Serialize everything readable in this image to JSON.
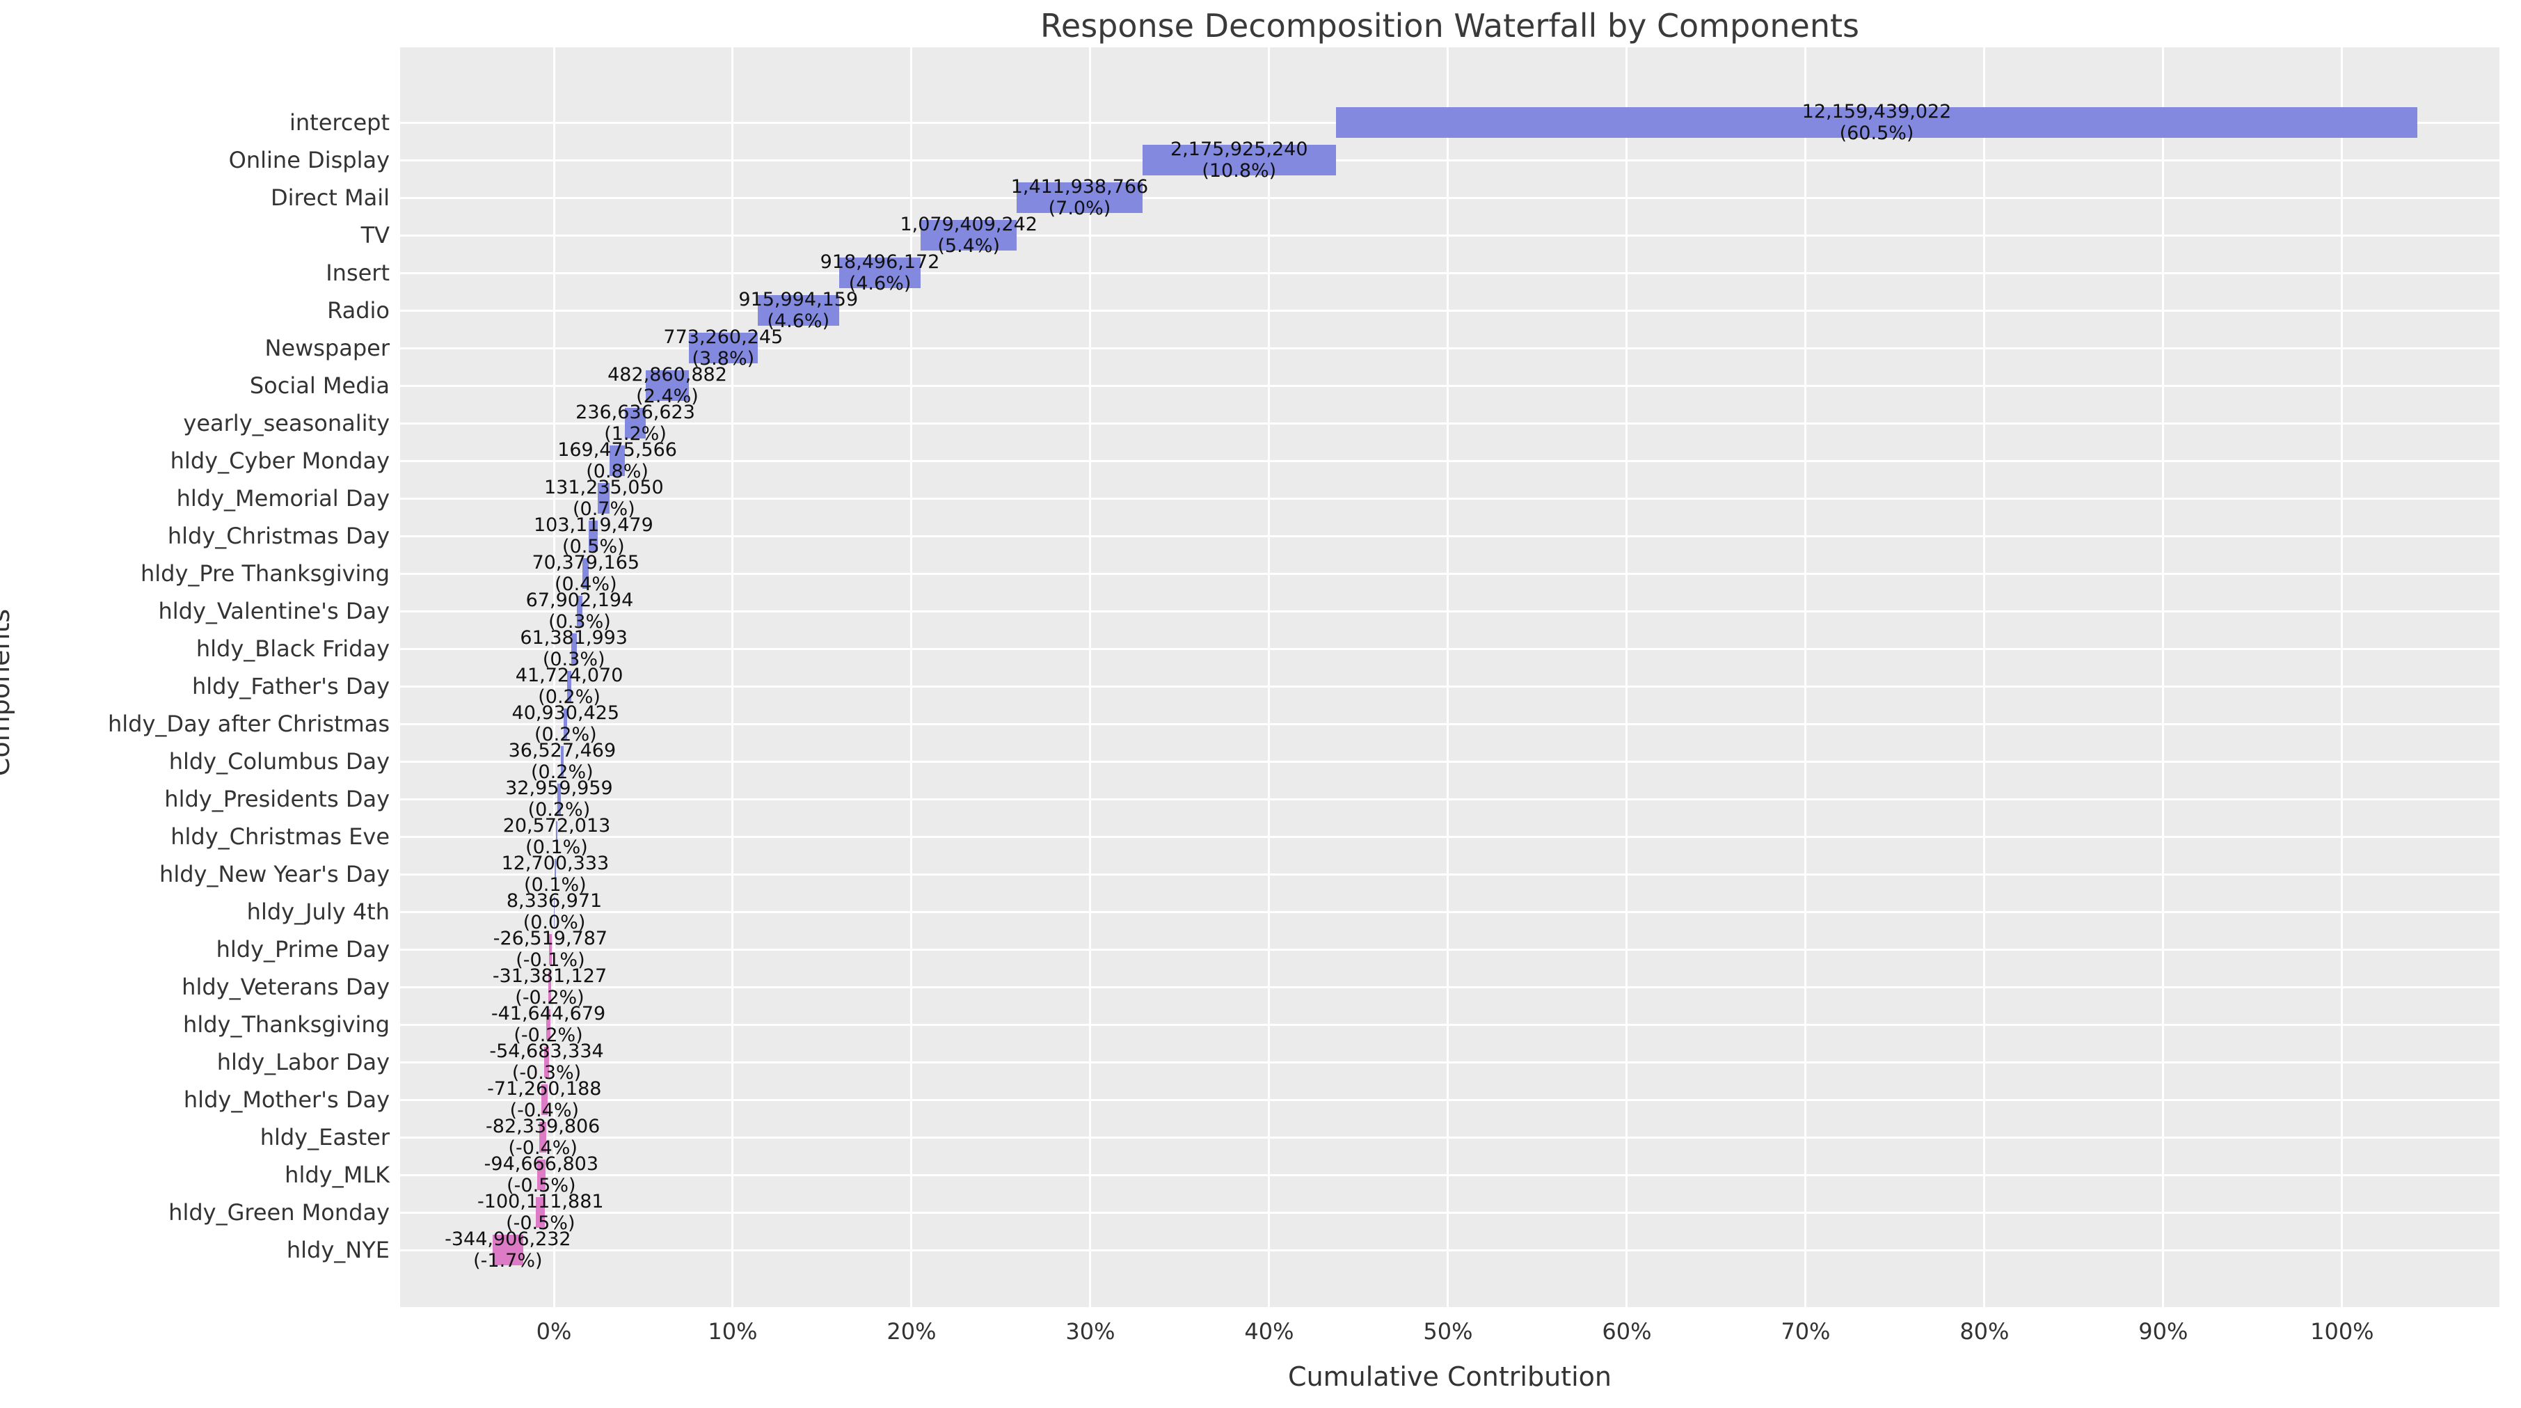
{
  "chart_data": {
    "type": "bar",
    "subtype": "horizontal-waterfall",
    "title": "Response Decomposition Waterfall by Components",
    "xlabel": "Cumulative Contribution",
    "ylabel": "Components",
    "legend": false,
    "grid": true,
    "xlim_pct": [
      -8.6,
      108.8
    ],
    "x_ticks": [
      {
        "value": 0,
        "label": "0%"
      },
      {
        "value": 10,
        "label": "10%"
      },
      {
        "value": 20,
        "label": "20%"
      },
      {
        "value": 30,
        "label": "30%"
      },
      {
        "value": 40,
        "label": "40%"
      },
      {
        "value": 50,
        "label": "50%"
      },
      {
        "value": 60,
        "label": "60%"
      },
      {
        "value": 70,
        "label": "70%"
      },
      {
        "value": 80,
        "label": "80%"
      },
      {
        "value": 90,
        "label": "90%"
      },
      {
        "value": 100,
        "label": "100%"
      }
    ],
    "colors": {
      "positive_bar": "#8289DF",
      "negative_bar": "#DD7BC7",
      "plot_background": "#EBEBEB",
      "grid_line": "#FFFFFF",
      "title_text": "#3A3A3A",
      "axis_text": "#333333",
      "bar_label_text": "#111111"
    },
    "rows": [
      {
        "label": "intercept",
        "value": 12159439022,
        "value_text": "12,159,439,022",
        "pct_text": "(60.5%)"
      },
      {
        "label": "Online Display",
        "value": 2175925240,
        "value_text": "2,175,925,240",
        "pct_text": "(10.8%)"
      },
      {
        "label": "Direct Mail",
        "value": 1411938766,
        "value_text": "1,411,938,766",
        "pct_text": "(7.0%)"
      },
      {
        "label": "TV",
        "value": 1079409242,
        "value_text": "1,079,409,242",
        "pct_text": "(5.4%)"
      },
      {
        "label": "Insert",
        "value": 918496172,
        "value_text": "918,496,172",
        "pct_text": "(4.6%)"
      },
      {
        "label": "Radio",
        "value": 915994159,
        "value_text": "915,994,159",
        "pct_text": "(4.6%)"
      },
      {
        "label": "Newspaper",
        "value": 773260245,
        "value_text": "773,260,245",
        "pct_text": "(3.8%)"
      },
      {
        "label": "Social Media",
        "value": 482860882,
        "value_text": "482,860,882",
        "pct_text": "(2.4%)"
      },
      {
        "label": "yearly_seasonality",
        "value": 236636623,
        "value_text": "236,636,623",
        "pct_text": "(1.2%)"
      },
      {
        "label": "hldy_Cyber Monday",
        "value": 169475566,
        "value_text": "169,475,566",
        "pct_text": "(0.8%)"
      },
      {
        "label": "hldy_Memorial Day",
        "value": 131235050,
        "value_text": "131,235,050",
        "pct_text": "(0.7%)"
      },
      {
        "label": "hldy_Christmas Day",
        "value": 103119479,
        "value_text": "103,119,479",
        "pct_text": "(0.5%)"
      },
      {
        "label": "hldy_Pre Thanksgiving",
        "value": 70379165,
        "value_text": "70,379,165",
        "pct_text": "(0.4%)"
      },
      {
        "label": "hldy_Valentine's Day",
        "value": 67902194,
        "value_text": "67,902,194",
        "pct_text": "(0.3%)"
      },
      {
        "label": "hldy_Black Friday",
        "value": 61381993,
        "value_text": "61,381,993",
        "pct_text": "(0.3%)"
      },
      {
        "label": "hldy_Father's Day",
        "value": 41724070,
        "value_text": "41,724,070",
        "pct_text": "(0.2%)"
      },
      {
        "label": "hldy_Day after Christmas",
        "value": 40930425,
        "value_text": "40,930,425",
        "pct_text": "(0.2%)"
      },
      {
        "label": "hldy_Columbus Day",
        "value": 36527469,
        "value_text": "36,527,469",
        "pct_text": "(0.2%)"
      },
      {
        "label": "hldy_Presidents Day",
        "value": 32959959,
        "value_text": "32,959,959",
        "pct_text": "(0.2%)"
      },
      {
        "label": "hldy_Christmas Eve",
        "value": 20572013,
        "value_text": "20,572,013",
        "pct_text": "(0.1%)"
      },
      {
        "label": "hldy_New Year's Day",
        "value": 12700333,
        "value_text": "12,700,333",
        "pct_text": "(0.1%)"
      },
      {
        "label": "hldy_July 4th",
        "value": 8336971,
        "value_text": "8,336,971",
        "pct_text": "(0.0%)"
      },
      {
        "label": "hldy_Prime Day",
        "value": -26519787,
        "value_text": "-26,519,787",
        "pct_text": "(-0.1%)"
      },
      {
        "label": "hldy_Veterans Day",
        "value": -31381127,
        "value_text": "-31,381,127",
        "pct_text": "(-0.2%)"
      },
      {
        "label": "hldy_Thanksgiving",
        "value": -41644679,
        "value_text": "-41,644,679",
        "pct_text": "(-0.2%)"
      },
      {
        "label": "hldy_Labor Day",
        "value": -54683334,
        "value_text": "-54,683,334",
        "pct_text": "(-0.3%)"
      },
      {
        "label": "hldy_Mother's Day",
        "value": -71260188,
        "value_text": "-71,260,188",
        "pct_text": "(-0.4%)"
      },
      {
        "label": "hldy_Easter",
        "value": -82339806,
        "value_text": "-82,339,806",
        "pct_text": "(-0.4%)"
      },
      {
        "label": "hldy_MLK",
        "value": -94666803,
        "value_text": "-94,666,803",
        "pct_text": "(-0.5%)"
      },
      {
        "label": "hldy_Green Monday",
        "value": -100111881,
        "value_text": "-100,111,881",
        "pct_text": "(-0.5%)"
      },
      {
        "label": "hldy_NYE",
        "value": -344906232,
        "value_text": "-344,906,232",
        "pct_text": "(-1.7%)"
      }
    ]
  }
}
